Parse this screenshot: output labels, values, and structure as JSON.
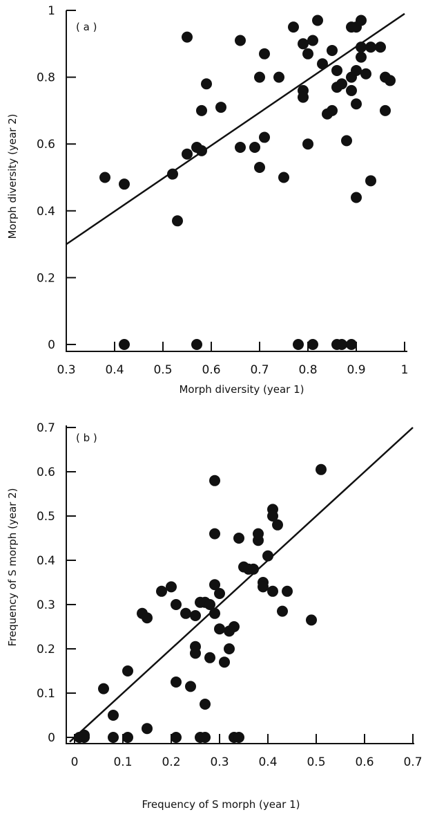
{
  "chart_data": [
    {
      "type": "scatter",
      "panel_label": "( a )",
      "xlabel": "Morph diversity (year 1)",
      "ylabel": "Morph diversity (year 2)",
      "xlim": [
        0.3,
        1.0
      ],
      "ylim": [
        0,
        1.0
      ],
      "x_ticks": [
        "0.3",
        "0.4",
        "0.5",
        "0.6",
        "0.7",
        "0.8",
        "0.9",
        "1"
      ],
      "y_ticks": [
        "0",
        "0.2",
        "0.4",
        "0.6",
        "0.8",
        "1"
      ],
      "fit_line": [
        [
          0.3,
          0.3
        ],
        [
          1.0,
          0.99
        ]
      ],
      "points": [
        [
          0.38,
          0.5
        ],
        [
          0.42,
          0.48
        ],
        [
          0.52,
          0.51
        ],
        [
          0.53,
          0.37
        ],
        [
          0.55,
          0.57
        ],
        [
          0.55,
          0.92
        ],
        [
          0.57,
          0.59
        ],
        [
          0.58,
          0.58
        ],
        [
          0.58,
          0.7
        ],
        [
          0.59,
          0.78
        ],
        [
          0.62,
          0.71
        ],
        [
          0.66,
          0.59
        ],
        [
          0.66,
          0.91
        ],
        [
          0.69,
          0.59
        ],
        [
          0.7,
          0.8
        ],
        [
          0.7,
          0.53
        ],
        [
          0.71,
          0.87
        ],
        [
          0.71,
          0.62
        ],
        [
          0.74,
          0.8
        ],
        [
          0.75,
          0.5
        ],
        [
          0.77,
          0.95
        ],
        [
          0.79,
          0.9
        ],
        [
          0.79,
          0.76
        ],
        [
          0.79,
          0.74
        ],
        [
          0.8,
          0.87
        ],
        [
          0.8,
          0.6
        ],
        [
          0.81,
          0.91
        ],
        [
          0.82,
          0.97
        ],
        [
          0.83,
          0.84
        ],
        [
          0.84,
          0.69
        ],
        [
          0.85,
          0.7
        ],
        [
          0.85,
          0.88
        ],
        [
          0.86,
          0.82
        ],
        [
          0.86,
          0.77
        ],
        [
          0.87,
          0.78
        ],
        [
          0.88,
          0.61
        ],
        [
          0.89,
          0.8
        ],
        [
          0.89,
          0.76
        ],
        [
          0.89,
          0.95
        ],
        [
          0.9,
          0.95
        ],
        [
          0.9,
          0.82
        ],
        [
          0.9,
          0.72
        ],
        [
          0.9,
          0.44
        ],
        [
          0.91,
          0.86
        ],
        [
          0.91,
          0.89
        ],
        [
          0.91,
          0.97
        ],
        [
          0.92,
          0.81
        ],
        [
          0.93,
          0.89
        ],
        [
          0.93,
          0.49
        ],
        [
          0.95,
          0.89
        ],
        [
          0.96,
          0.8
        ],
        [
          0.96,
          0.7
        ],
        [
          0.97,
          0.79
        ],
        [
          0.42,
          0.0
        ],
        [
          0.57,
          0.0
        ],
        [
          0.78,
          0.0
        ],
        [
          0.81,
          0.0
        ],
        [
          0.86,
          0.0
        ],
        [
          0.87,
          0.0
        ],
        [
          0.89,
          0.0
        ]
      ]
    },
    {
      "type": "scatter",
      "panel_label": "( b )",
      "xlabel": "Frequency of S morph (year 1)",
      "ylabel": "Frequency of S morph (year 2)",
      "xlim": [
        0,
        0.7
      ],
      "ylim": [
        0,
        0.7
      ],
      "x_ticks": [
        "0",
        "0.1",
        "0.2",
        "0.3",
        "0.4",
        "0.5",
        "0.6",
        "0.7"
      ],
      "y_ticks": [
        "0",
        "0.1",
        "0.2",
        "0.3",
        "0.4",
        "0.5",
        "0.6",
        "0.7"
      ],
      "fit_line": [
        [
          -0.01,
          -0.01
        ],
        [
          0.7,
          0.7
        ]
      ],
      "points": [
        [
          0.01,
          0.0
        ],
        [
          0.02,
          0.0
        ],
        [
          0.02,
          0.005
        ],
        [
          0.06,
          0.11
        ],
        [
          0.08,
          0.05
        ],
        [
          0.08,
          0.0
        ],
        [
          0.11,
          0.0
        ],
        [
          0.11,
          0.15
        ],
        [
          0.14,
          0.28
        ],
        [
          0.15,
          0.27
        ],
        [
          0.15,
          0.02
        ],
        [
          0.18,
          0.33
        ],
        [
          0.2,
          0.34
        ],
        [
          0.21,
          0.3
        ],
        [
          0.21,
          0.125
        ],
        [
          0.21,
          0.0
        ],
        [
          0.23,
          0.28
        ],
        [
          0.24,
          0.115
        ],
        [
          0.25,
          0.275
        ],
        [
          0.25,
          0.19
        ],
        [
          0.25,
          0.205
        ],
        [
          0.26,
          0.305
        ],
        [
          0.26,
          0.0
        ],
        [
          0.27,
          0.0
        ],
        [
          0.27,
          0.305
        ],
        [
          0.27,
          0.075
        ],
        [
          0.28,
          0.18
        ],
        [
          0.28,
          0.3
        ],
        [
          0.29,
          0.58
        ],
        [
          0.29,
          0.345
        ],
        [
          0.29,
          0.28
        ],
        [
          0.29,
          0.46
        ],
        [
          0.3,
          0.325
        ],
        [
          0.3,
          0.245
        ],
        [
          0.31,
          0.17
        ],
        [
          0.32,
          0.24
        ],
        [
          0.32,
          0.2
        ],
        [
          0.33,
          0.25
        ],
        [
          0.33,
          0.0
        ],
        [
          0.34,
          0.0
        ],
        [
          0.34,
          0.45
        ],
        [
          0.35,
          0.385
        ],
        [
          0.36,
          0.38
        ],
        [
          0.37,
          0.38
        ],
        [
          0.38,
          0.445
        ],
        [
          0.38,
          0.46
        ],
        [
          0.39,
          0.35
        ],
        [
          0.39,
          0.34
        ],
        [
          0.4,
          0.41
        ],
        [
          0.41,
          0.515
        ],
        [
          0.41,
          0.5
        ],
        [
          0.41,
          0.33
        ],
        [
          0.42,
          0.48
        ],
        [
          0.43,
          0.285
        ],
        [
          0.44,
          0.33
        ],
        [
          0.49,
          0.265
        ],
        [
          0.51,
          0.605
        ]
      ]
    }
  ]
}
